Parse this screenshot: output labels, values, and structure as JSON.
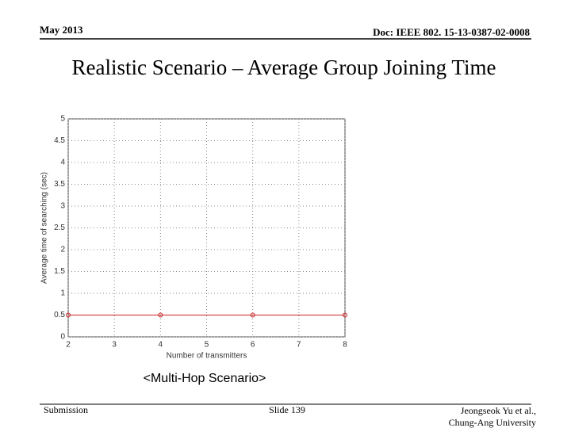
{
  "header": {
    "date": "May 2013",
    "doc": "Doc: IEEE 802. 15-13-0387-02-0008"
  },
  "title": "Realistic Scenario – Average Group Joining Time",
  "chart_data": {
    "type": "line",
    "x_label": "Number of transmitters",
    "y_label": "Average time of searching (sec)",
    "x": [
      2,
      4,
      6,
      8
    ],
    "series": [
      {
        "name": "Multi-Hop",
        "color": "#cc2222",
        "values": [
          0.5,
          0.5,
          0.5,
          0.5
        ]
      }
    ],
    "xlim": [
      2,
      8
    ],
    "xticks": [
      2,
      3,
      4,
      5,
      6,
      7,
      8
    ],
    "ylim": [
      0,
      5
    ],
    "yticks": [
      0,
      0.5,
      1,
      1.5,
      2,
      2.5,
      3,
      3.5,
      4,
      4.5,
      5
    ],
    "grid": true
  },
  "caption": "<Multi-Hop Scenario>",
  "footer": {
    "left": "Submission",
    "center": "Slide 139",
    "author": "Jeongseok Yu et al.,",
    "affiliation": "Chung-Ang University"
  }
}
